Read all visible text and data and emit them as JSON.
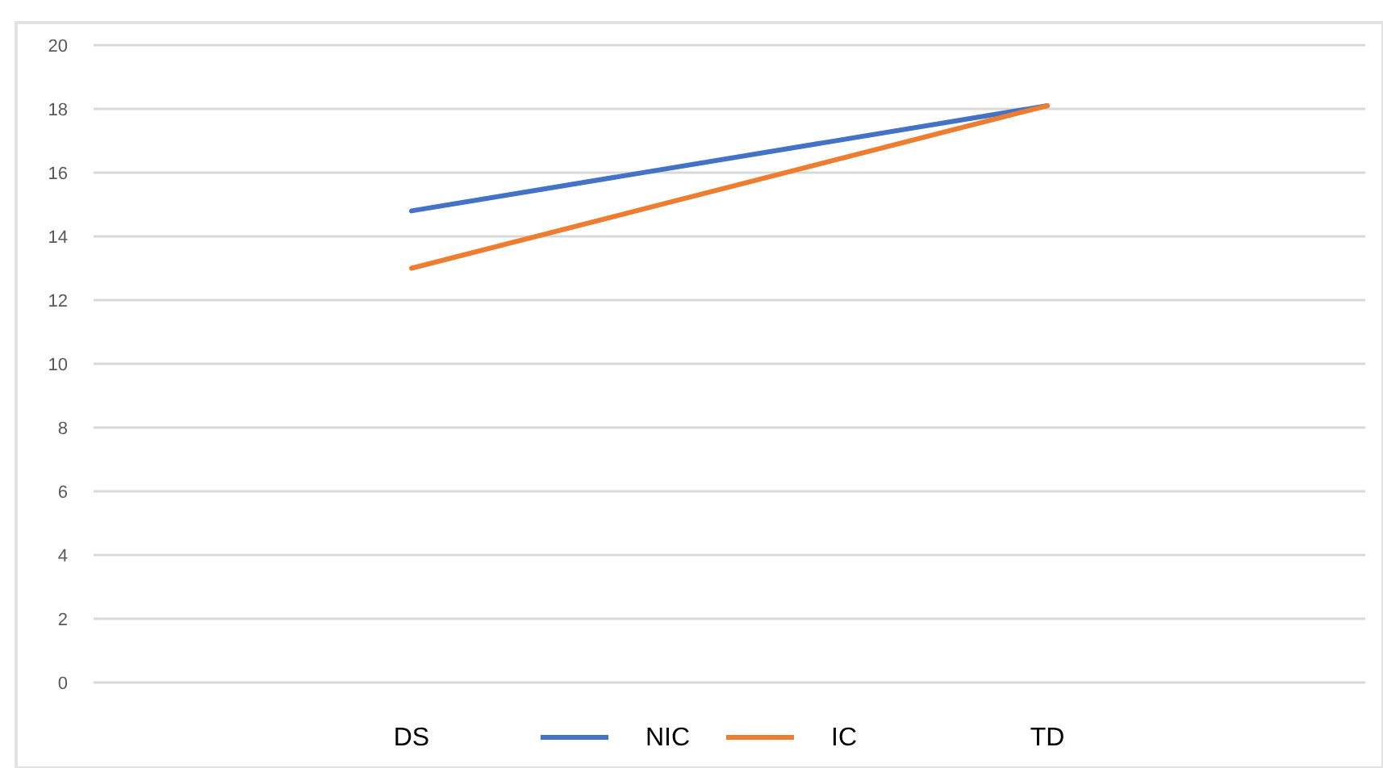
{
  "chart_data": {
    "type": "line",
    "categories": [
      "DS",
      "TD"
    ],
    "series": [
      {
        "name": "NIC",
        "color": "#4472c4",
        "values": [
          14.8,
          18.1
        ]
      },
      {
        "name": "IC",
        "color": "#ed7d31",
        "values": [
          13.0,
          18.1
        ]
      }
    ],
    "ylim": [
      0,
      20
    ],
    "yticks": [
      0,
      2,
      4,
      6,
      8,
      10,
      12,
      14,
      16,
      18,
      20
    ],
    "grid": "y",
    "legend": "bottom",
    "marker": "none",
    "line_style": "solid"
  }
}
